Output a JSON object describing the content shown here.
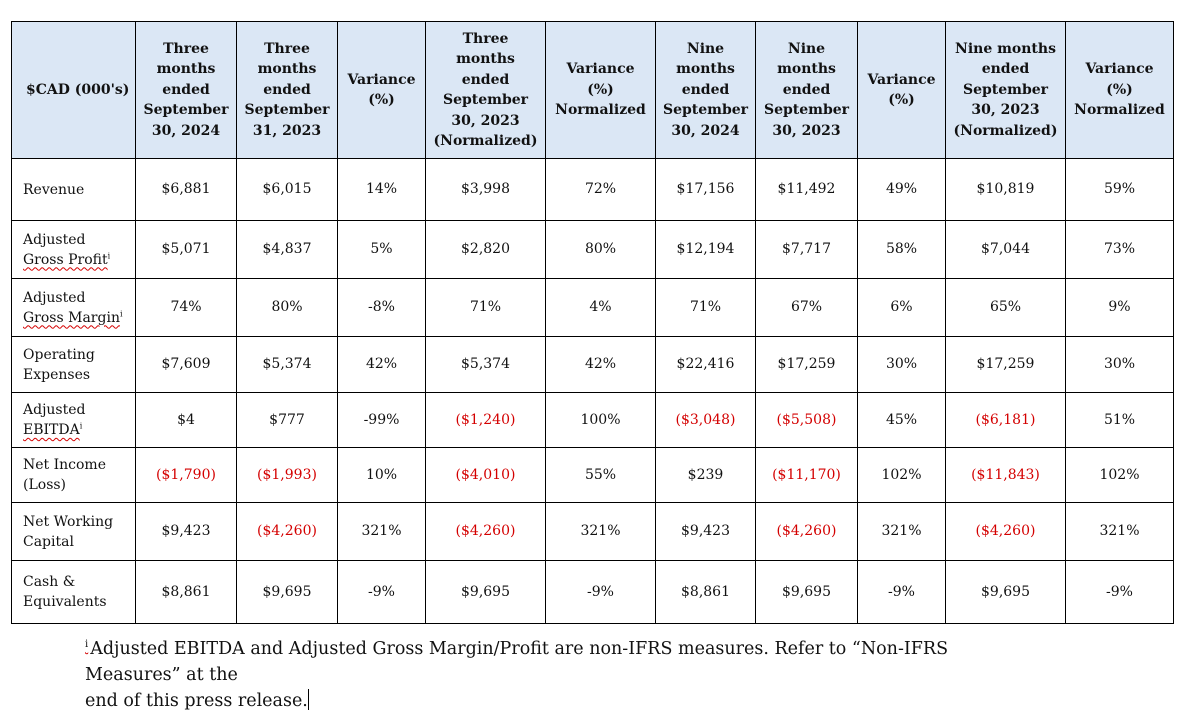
{
  "table": {
    "header_first": "$CAD (000's)",
    "columns": [
      [
        "Three",
        "months",
        "ended",
        "September",
        "30, 2024"
      ],
      [
        "Three",
        "months",
        "ended",
        "September",
        "31, 2023"
      ],
      [
        "Variance",
        "(%)"
      ],
      [
        "Three",
        "months",
        "ended",
        "September",
        "30, 2023",
        "(Normalized)"
      ],
      [
        "Variance",
        "(%)",
        "Normalized"
      ],
      [
        "Nine",
        "months",
        "ended",
        "September",
        "30, 2024"
      ],
      [
        "Nine",
        "months",
        "ended",
        "September",
        "30, 2023"
      ],
      [
        "Variance",
        "(%)"
      ],
      [
        "Nine months",
        "ended",
        "September",
        "30, 2023",
        "(Normalized)"
      ],
      [
        "Variance",
        "(%)",
        "Normalized"
      ]
    ],
    "footnote_mark": "i",
    "rows": [
      {
        "label": [
          "Revenue"
        ],
        "mark": false,
        "values": [
          "$6,881",
          "$6,015",
          "14%",
          "$3,998",
          "72%",
          "$17,156",
          "$11,492",
          "49%",
          "$10,819",
          "59%"
        ],
        "negative": [
          false,
          false,
          false,
          false,
          false,
          false,
          false,
          false,
          false,
          false
        ]
      },
      {
        "label": [
          "Adjusted",
          "Gross Profit"
        ],
        "mark": true,
        "values": [
          "$5,071",
          "$4,837",
          "5%",
          "$2,820",
          "80%",
          "$12,194",
          "$7,717",
          "58%",
          "$7,044",
          "73%"
        ],
        "negative": [
          false,
          false,
          false,
          false,
          false,
          false,
          false,
          false,
          false,
          false
        ]
      },
      {
        "label": [
          "Adjusted",
          "Gross Margin"
        ],
        "mark": true,
        "values": [
          "74%",
          "80%",
          "-8%",
          "71%",
          "4%",
          "71%",
          "67%",
          "6%",
          "65%",
          "9%"
        ],
        "negative": [
          false,
          false,
          false,
          false,
          false,
          false,
          false,
          false,
          false,
          false
        ]
      },
      {
        "label": [
          "Operating",
          "Expenses"
        ],
        "mark": false,
        "values": [
          "$7,609",
          "$5,374",
          "42%",
          "$5,374",
          "42%",
          "$22,416",
          "$17,259",
          "30%",
          "$17,259",
          "30%"
        ],
        "negative": [
          false,
          false,
          false,
          false,
          false,
          false,
          false,
          false,
          false,
          false
        ]
      },
      {
        "label": [
          "Adjusted",
          "EBITDA"
        ],
        "mark": true,
        "values": [
          "$4",
          "$777",
          "-99%",
          "($1,240)",
          "100%",
          "($3,048)",
          "($5,508)",
          "45%",
          "($6,181)",
          "51%"
        ],
        "negative": [
          false,
          false,
          false,
          true,
          false,
          true,
          true,
          false,
          true,
          false
        ]
      },
      {
        "label": [
          "Net Income",
          "(Loss)"
        ],
        "mark": false,
        "values": [
          "($1,790)",
          "($1,993)",
          "10%",
          "($4,010)",
          "55%",
          "$239",
          "($11,170)",
          "102%",
          "($11,843)",
          "102%"
        ],
        "negative": [
          true,
          true,
          false,
          true,
          false,
          false,
          true,
          false,
          true,
          false
        ]
      },
      {
        "label": [
          "Net Working",
          "Capital"
        ],
        "mark": false,
        "values": [
          "$9,423",
          "($4,260)",
          "321%",
          "($4,260)",
          "321%",
          "$9,423",
          "($4,260)",
          "321%",
          "($4,260)",
          "321%"
        ],
        "negative": [
          false,
          true,
          false,
          true,
          false,
          false,
          true,
          false,
          true,
          false
        ]
      },
      {
        "label": [
          "Cash &",
          "Equivalents"
        ],
        "mark": false,
        "values": [
          "$8,861",
          "$9,695",
          "-9%",
          "$9,695",
          "-9%",
          "$8,861",
          "$9,695",
          "-9%",
          "$9,695",
          "-9%"
        ],
        "negative": [
          false,
          false,
          false,
          false,
          false,
          false,
          false,
          false,
          false,
          false
        ]
      }
    ]
  },
  "footnote": {
    "mark": "i",
    "line1": "Adjusted EBITDA and Adjusted Gross Margin/Profit are non-IFRS measures. Refer to “Non-IFRS Measures” at the",
    "line2": "end of this press release."
  },
  "colors": {
    "header_bg": "#dbe7f5",
    "negative": "#d40000",
    "border": "#000000"
  }
}
